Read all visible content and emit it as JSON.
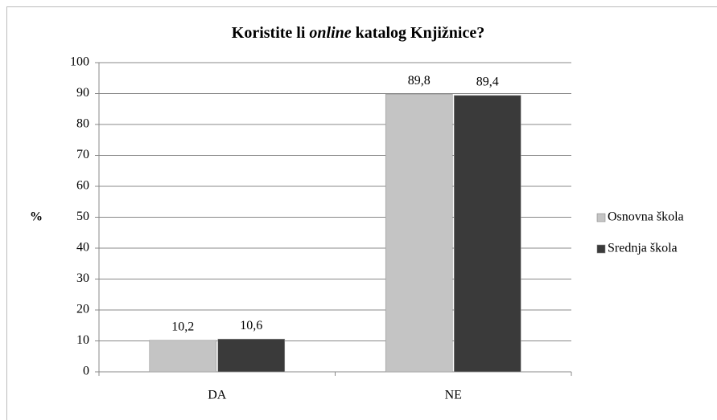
{
  "chart_data": {
    "type": "bar",
    "title": [
      "Koristite li ",
      "online",
      " katalog Knjižnice?"
    ],
    "y_label": "%",
    "categories": [
      "DA",
      "NE"
    ],
    "series": [
      {
        "name": "Osnovna škola",
        "color": "#c4c4c4",
        "values": [
          10.2,
          89.8
        ],
        "value_labels": [
          "10,2",
          "89,8"
        ]
      },
      {
        "name": "Srednja škola",
        "color": "#3a3a3a",
        "values": [
          10.6,
          89.4
        ],
        "value_labels": [
          "10,6",
          "89,4"
        ]
      }
    ],
    "ylim": [
      0,
      100
    ],
    "yticks": [
      0,
      10,
      20,
      30,
      40,
      50,
      60,
      70,
      80,
      90,
      100
    ],
    "grid": true,
    "legend": "right"
  }
}
